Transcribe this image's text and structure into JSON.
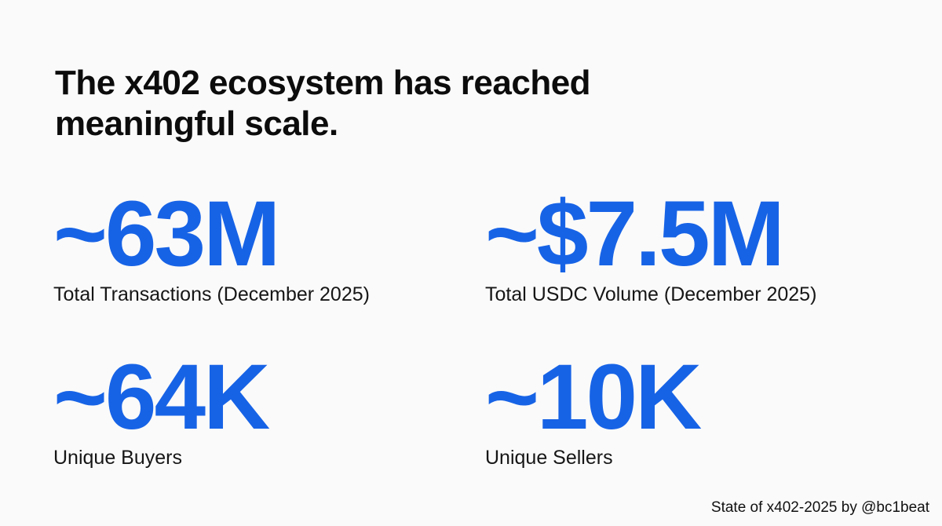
{
  "slide": {
    "title_line1": "The x402 ecosystem has reached",
    "title_line2": "meaningful scale.",
    "accent_color": "#1763e6",
    "stats": [
      {
        "value": "~63M",
        "label": "Total Transactions (December 2025)"
      },
      {
        "value": "~$7.5M",
        "label": "Total USDC Volume (December 2025)"
      },
      {
        "value": "~64K",
        "label": "Unique Buyers"
      },
      {
        "value": "~10K",
        "label": "Unique Sellers"
      }
    ],
    "footer": "State of x402-2025 by  @bc1beat"
  }
}
